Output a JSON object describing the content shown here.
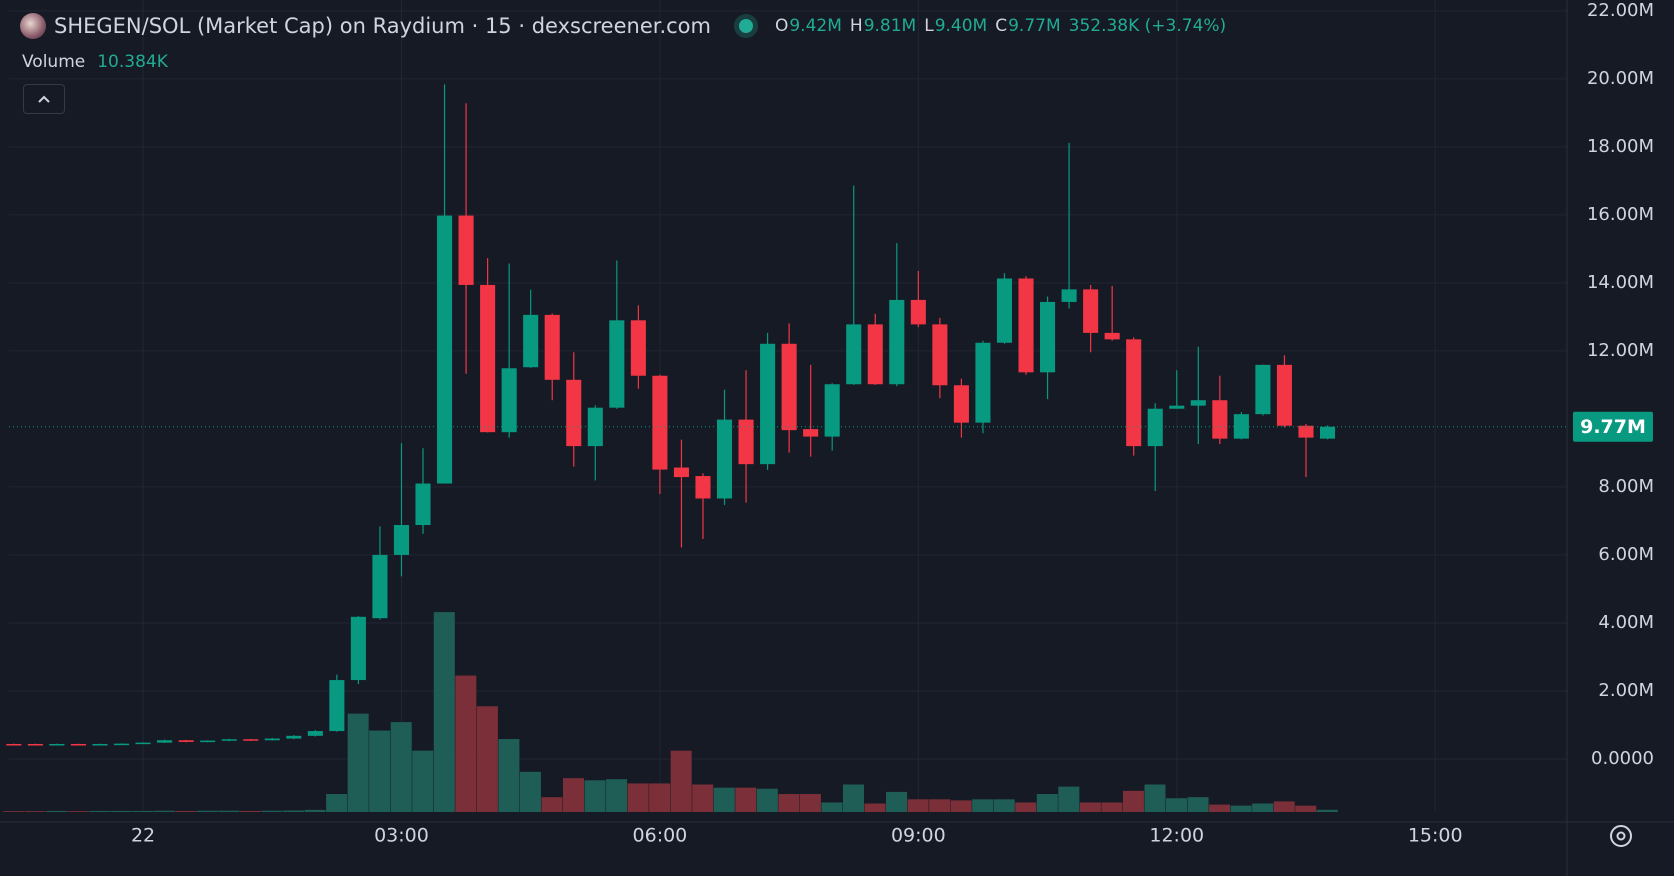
{
  "header": {
    "title": "SHEGEN/SOL (Market Cap) on Raydium · 15 · dexscreener.com",
    "ohlc": [
      {
        "key": "O",
        "value": "9.42M"
      },
      {
        "key": "H",
        "value": "9.81M"
      },
      {
        "key": "L",
        "value": "9.40M"
      },
      {
        "key": "C",
        "value": "9.77M"
      }
    ],
    "change": "352.38K (+3.74%)",
    "volume_title": "Volume",
    "volume_value": "10.384K"
  },
  "chart_data": {
    "type": "candlestick",
    "x": [
      -1.5,
      -1.25,
      -1,
      -0.75,
      -0.5,
      -0.25,
      0,
      0.25,
      0.5,
      0.75,
      1,
      1.25,
      1.5,
      1.75,
      2,
      2.25,
      2.5,
      2.75,
      3,
      3.25,
      3.5,
      3.75,
      4,
      4.25,
      4.5,
      4.75,
      5,
      5.25,
      5.5,
      5.75,
      6,
      6.25,
      6.5,
      6.75,
      7,
      7.25,
      7.5,
      7.75,
      8,
      8.25,
      8.5,
      8.75,
      9,
      9.25,
      9.5,
      9.75,
      10,
      10.25,
      10.5,
      10.75,
      11,
      11.25,
      11.5,
      11.75,
      12,
      12.25,
      12.5,
      12.75,
      13,
      13.25,
      13.5,
      13.75
    ],
    "open": [
      0.44,
      0.44,
      0.42,
      0.44,
      0.43,
      0.44,
      0.45,
      0.48,
      0.55,
      0.5,
      0.54,
      0.58,
      0.55,
      0.6,
      0.68,
      0.82,
      2.32,
      4.14,
      6.0,
      6.88,
      8.1,
      15.98,
      13.94,
      9.61,
      11.52,
      13.06,
      11.15,
      9.2,
      10.33,
      12.9,
      11.27,
      8.57,
      8.32,
      7.66,
      9.98,
      8.67,
      12.21,
      9.7,
      9.48,
      11.02,
      12.78,
      11.02,
      13.5,
      12.78,
      10.99,
      9.89,
      12.24,
      14.13,
      11.37,
      13.44,
      13.81,
      12.53,
      12.34,
      9.2,
      10.3,
      10.39,
      10.55,
      9.42,
      10.14,
      11.59,
      9.8,
      9.42
    ],
    "high": [
      0.45,
      0.45,
      0.45,
      0.45,
      0.45,
      0.46,
      0.49,
      0.57,
      0.56,
      0.55,
      0.59,
      0.59,
      0.62,
      0.7,
      0.85,
      2.48,
      4.2,
      6.84,
      9.29,
      9.14,
      19.84,
      19.28,
      14.73,
      14.57,
      13.8,
      13.1,
      11.96,
      10.4,
      14.66,
      13.34,
      11.3,
      9.39,
      8.4,
      10.86,
      11.43,
      12.53,
      12.81,
      11.59,
      11.05,
      16.86,
      13.09,
      15.17,
      14.35,
      12.97,
      11.18,
      12.3,
      14.29,
      14.2,
      13.6,
      18.12,
      13.94,
      13.91,
      12.4,
      10.46,
      11.43,
      12.12,
      11.27,
      10.2,
      11.6,
      11.87,
      9.85,
      9.81
    ],
    "low": [
      0.42,
      0.42,
      0.41,
      0.42,
      0.42,
      0.43,
      0.44,
      0.47,
      0.49,
      0.49,
      0.52,
      0.53,
      0.54,
      0.58,
      0.66,
      0.8,
      2.2,
      4.1,
      5.37,
      6.62,
      8.1,
      11.33,
      9.6,
      9.45,
      11.5,
      10.55,
      8.6,
      8.19,
      10.3,
      10.89,
      7.79,
      6.22,
      6.47,
      7.47,
      7.54,
      8.5,
      9.01,
      8.89,
      9.07,
      11.0,
      11.0,
      10.96,
      12.7,
      10.61,
      9.45,
      9.58,
      12.21,
      11.3,
      10.58,
      13.25,
      11.96,
      12.3,
      8.92,
      7.88,
      10.3,
      9.26,
      9.26,
      9.4,
      10.1,
      9.75,
      8.29,
      9.4
    ],
    "close": [
      0.42,
      0.42,
      0.44,
      0.43,
      0.44,
      0.45,
      0.48,
      0.55,
      0.5,
      0.54,
      0.58,
      0.55,
      0.6,
      0.68,
      0.82,
      2.32,
      4.18,
      6.0,
      6.88,
      8.1,
      15.98,
      13.94,
      9.61,
      11.49,
      13.06,
      11.15,
      9.2,
      10.33,
      12.9,
      11.27,
      8.51,
      8.29,
      7.66,
      9.98,
      8.67,
      12.21,
      9.67,
      9.48,
      11.02,
      12.78,
      11.02,
      13.5,
      12.78,
      10.99,
      9.89,
      12.24,
      14.13,
      11.37,
      13.44,
      13.81,
      12.53,
      12.34,
      9.2,
      10.3,
      10.39,
      10.55,
      9.42,
      10.14,
      11.59,
      9.8,
      9.45,
      9.77
    ],
    "volume": [
      4000,
      4000,
      5000,
      4000,
      5000,
      5000,
      5000,
      6000,
      5000,
      6000,
      6000,
      5000,
      6000,
      7000,
      10000,
      85000,
      465000,
      385000,
      425000,
      290000,
      945000,
      645000,
      500000,
      345000,
      190000,
      70000,
      160000,
      150000,
      155000,
      135000,
      135000,
      290000,
      130000,
      115000,
      115000,
      110000,
      85000,
      85000,
      45000,
      130000,
      40000,
      95000,
      60000,
      60000,
      55000,
      60000,
      60000,
      45000,
      85000,
      120000,
      45000,
      45000,
      100000,
      130000,
      65000,
      70000,
      35000,
      30000,
      40000,
      50000,
      30000,
      10384
    ],
    "up_color": "#089981",
    "down_color": "#f23645",
    "volume_up_color": "#1f5e57",
    "volume_down_color": "#7b2f38",
    "xlim": [
      -1.556,
      16.53
    ],
    "xticks": [
      {
        "value": 0,
        "label": "22"
      },
      {
        "value": 3,
        "label": "03:00"
      },
      {
        "value": 6,
        "label": "06:00"
      },
      {
        "value": 9,
        "label": "09:00"
      },
      {
        "value": 12,
        "label": "12:00"
      },
      {
        "value": 15,
        "label": "15:00"
      }
    ],
    "ylim": [
      -1.56,
      22.32
    ],
    "yticks": [
      {
        "value": 0,
        "label": "0.0000"
      },
      {
        "value": 2,
        "label": "2.00M"
      },
      {
        "value": 4,
        "label": "4.00M"
      },
      {
        "value": 6,
        "label": "6.00M"
      },
      {
        "value": 8,
        "label": "8.00M"
      },
      {
        "value": 12,
        "label": "12.00M"
      },
      {
        "value": 14,
        "label": "14.00M"
      },
      {
        "value": 16,
        "label": "16.00M"
      },
      {
        "value": 18,
        "label": "18.00M"
      },
      {
        "value": 20,
        "label": "20.00M"
      },
      {
        "value": 22,
        "label": "22.00M"
      }
    ],
    "last_price": {
      "value": 9.77,
      "label": "9.77M"
    },
    "grid": true
  }
}
